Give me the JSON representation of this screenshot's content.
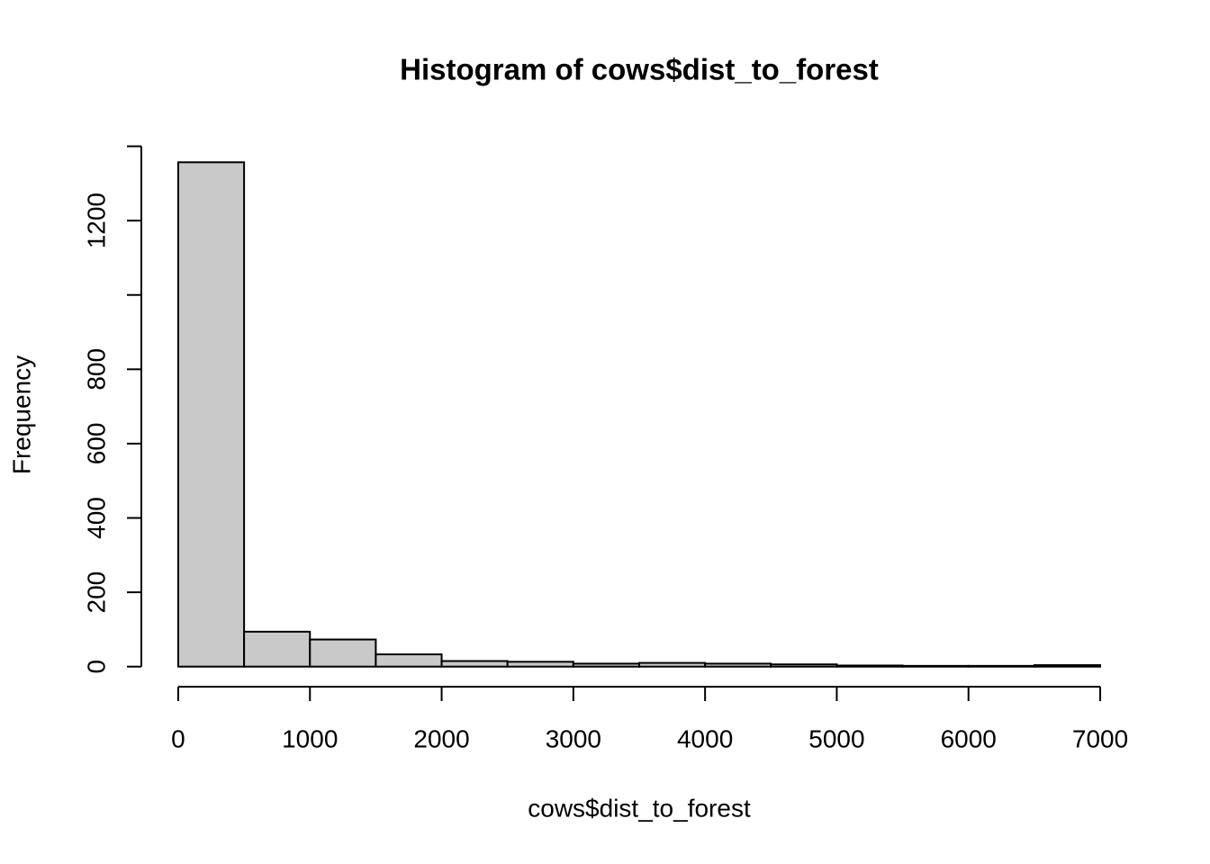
{
  "chart_data": {
    "type": "histogram",
    "title": "Histogram of cows$dist_to_forest",
    "x_label": "cows$dist_to_forest",
    "y_label": "Frequency",
    "bins": [
      0,
      500,
      1000,
      1500,
      2000,
      2500,
      3000,
      3500,
      4000,
      4500,
      5000,
      5500,
      6000,
      6500,
      7000
    ],
    "counts": [
      1357,
      94,
      73,
      33,
      15,
      13,
      8,
      10,
      8,
      6,
      3,
      2,
      2,
      4
    ],
    "color": "#c9c9c9",
    "xlim": [
      -280,
      7280
    ],
    "xticks": [
      0,
      1000,
      2000,
      3000,
      4000,
      5000,
      6000,
      7000
    ],
    "ylim": [
      -54,
      1411
    ],
    "yticks": [
      0,
      200,
      400,
      600,
      800,
      {
        "value": 1000,
        "label": null
      },
      1200,
      {
        "value": 1400,
        "label": null
      }
    ],
    "grid": false
  }
}
